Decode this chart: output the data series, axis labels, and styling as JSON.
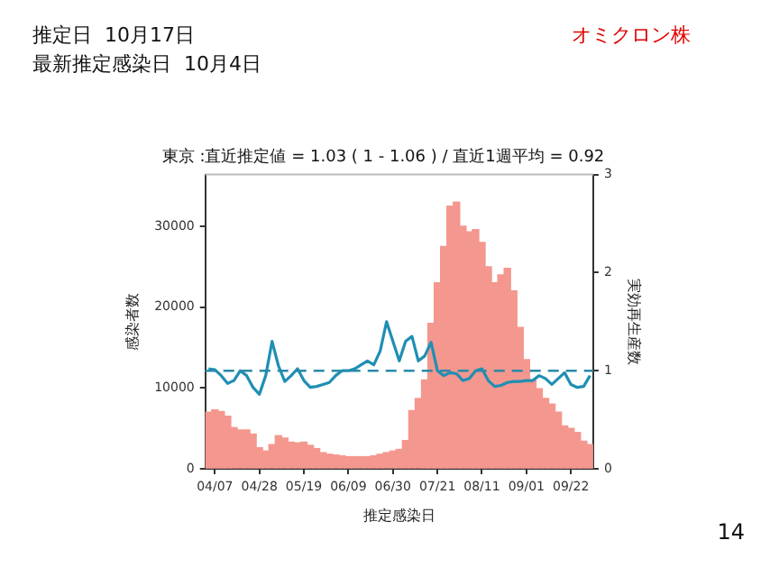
{
  "chart_data": {
    "type": "bar",
    "title": "東京 :直近推定値 = 1.03 ( 1 - 1.06 ) / 直近1週平均 = 0.92",
    "xlabel": "推定感染日",
    "ylabel": "感染者数",
    "y2label": "実効再生産数",
    "annotations": [
      "推定日  10月17日",
      "最新推定感染日  10月4日",
      "オミクロン株",
      "14"
    ],
    "categories": [
      null,
      "04/07",
      null,
      null,
      null,
      null,
      null,
      null,
      "04/28",
      null,
      null,
      null,
      null,
      null,
      null,
      "05/19",
      null,
      null,
      null,
      null,
      null,
      null,
      "06/09",
      null,
      null,
      null,
      null,
      null,
      null,
      "06/30",
      null,
      null,
      null,
      null,
      null,
      null,
      "07/21",
      null,
      null,
      null,
      null,
      null,
      null,
      "08/11",
      null,
      null,
      null,
      null,
      null,
      null,
      "09/01",
      null,
      null,
      null,
      null,
      null,
      null,
      "09/22",
      null,
      null,
      null
    ],
    "series": [
      {
        "color": "#f4978e",
        "values": [
          7000,
          7300,
          7100,
          6500,
          5100,
          4800,
          4800,
          4300,
          2600,
          2200,
          3000,
          4100,
          3800,
          3300,
          3200,
          3300,
          2900,
          2500,
          2000,
          1800,
          1700,
          1600,
          1500,
          1500,
          1500,
          1500,
          1600,
          1800,
          2000,
          2200,
          2400,
          3500,
          7200,
          8700,
          11000,
          18000,
          23000,
          27500,
          32500,
          33000,
          30000,
          29300,
          29600,
          28000,
          25000,
          23000,
          24000,
          24800,
          22000,
          17500,
          13500,
          11000,
          9900,
          8700,
          8000,
          7000,
          5300,
          5000,
          4500,
          3400,
          3000
        ]
      },
      {
        "type": "line",
        "axis": "y2",
        "color": "#1f8fb4",
        "values": [
          1.02,
          1.01,
          0.95,
          0.87,
          0.9,
          1.0,
          0.95,
          0.83,
          0.76,
          0.95,
          1.3,
          1.05,
          0.89,
          0.95,
          1.02,
          0.9,
          0.83,
          0.84,
          0.86,
          0.88,
          0.95,
          1.0,
          1.0,
          1.02,
          1.06,
          1.1,
          1.06,
          1.2,
          1.5,
          1.3,
          1.1,
          1.3,
          1.35,
          1.1,
          1.15,
          1.29,
          1.0,
          0.95,
          0.98,
          0.97,
          0.9,
          0.92,
          1.0,
          1.02,
          0.9,
          0.84,
          0.85,
          0.88,
          0.89,
          0.89,
          0.9,
          0.9,
          0.95,
          0.92,
          0.86,
          0.92,
          0.98,
          0.86,
          0.83,
          0.84,
          0.95
        ]
      }
    ],
    "ref_lines": [
      {
        "axis": "y2",
        "value": 1,
        "color": "#2a8aa8",
        "line_style": "dashed"
      }
    ],
    "ylim": [
      0,
      36400
    ],
    "yticks": [
      0,
      10000,
      20000,
      30000
    ],
    "y2lim": [
      0,
      3
    ],
    "y2ticks": [
      0,
      1,
      2,
      3
    ],
    "grid": false,
    "legend": false,
    "marker": "none",
    "line_style": "solid"
  }
}
